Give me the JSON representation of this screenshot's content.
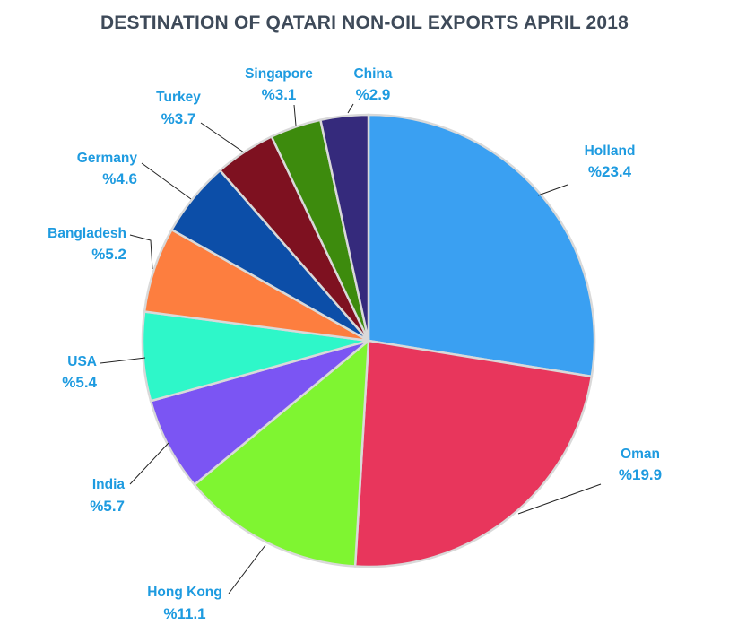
{
  "chart_data": {
    "type": "pie",
    "title": "DESTINATION OF QATARI NON-OIL EXPORTS APRIL 2018",
    "slices": [
      {
        "name": "Holland",
        "value": 23.4,
        "label": "%23.4",
        "color": "#3aa0f2"
      },
      {
        "name": "Oman",
        "value": 19.9,
        "label": "%19.9",
        "color": "#e8365c"
      },
      {
        "name": "Hong Kong",
        "value": 11.1,
        "label": "%11.1",
        "color": "#7ff531"
      },
      {
        "name": "India",
        "value": 5.7,
        "label": "%5.7",
        "color": "#7b55f3"
      },
      {
        "name": "USA",
        "value": 5.4,
        "label": "%5.4",
        "color": "#2ef7c9"
      },
      {
        "name": "Bangladesh",
        "value": 5.2,
        "label": "%5.2",
        "color": "#fd7e3f"
      },
      {
        "name": "Germany",
        "value": 4.6,
        "label": "%4.6",
        "color": "#0c4ea8"
      },
      {
        "name": "Turkey",
        "value": 3.7,
        "label": "%3.7",
        "color": "#7e1120"
      },
      {
        "name": "Singapore",
        "value": 3.1,
        "label": "%3.1",
        "color": "#3d8b0d"
      },
      {
        "name": "China",
        "value": 2.9,
        "label": "%2.9",
        "color": "#352a7c"
      }
    ],
    "label_color": "#1e9be0",
    "title_color": "#3e4a59"
  }
}
